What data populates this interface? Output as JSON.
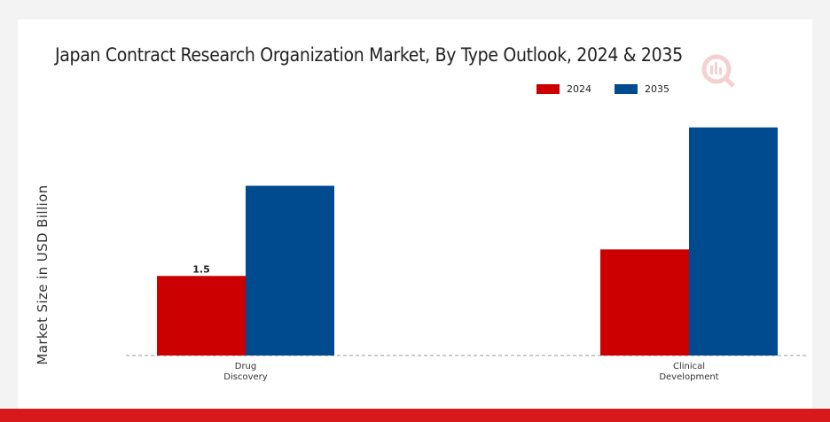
{
  "chart_data": {
    "type": "bar",
    "title": "Japan Contract Research Organization Market, By Type Outlook, 2024 & 2035",
    "ylabel": "Market Size in USD Billion",
    "xlabel": "",
    "categories": [
      "Drug\nDiscovery",
      "Clinical\nDevelopment"
    ],
    "series": [
      {
        "name": "2024",
        "values": [
          1.5,
          2.0
        ],
        "color": "#cc0000"
      },
      {
        "name": "2035",
        "values": [
          3.2,
          4.3
        ],
        "color": "#004a8f"
      }
    ],
    "data_labels": [
      {
        "series": 0,
        "category": 0,
        "text": "1.5"
      }
    ],
    "ylim": [
      0,
      6
    ],
    "legend_position": "top-right",
    "grid": false
  }
}
